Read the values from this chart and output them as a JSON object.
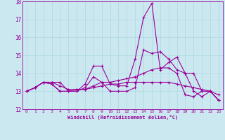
{
  "xlabel": "Windchill (Refroidissement éolien,°C)",
  "ylabel": "",
  "bg_color": "#cbe8f0",
  "line_color": "#990099",
  "xlim": [
    -0.5,
    23.5
  ],
  "ylim": [
    12,
    18
  ],
  "yticks": [
    12,
    13,
    14,
    15,
    16,
    17,
    18
  ],
  "xticks": [
    0,
    1,
    2,
    3,
    4,
    5,
    6,
    7,
    8,
    9,
    10,
    11,
    12,
    13,
    14,
    15,
    16,
    17,
    18,
    19,
    20,
    21,
    22,
    23
  ],
  "series": [
    [
      13.0,
      13.2,
      13.5,
      13.5,
      13.5,
      13.0,
      13.1,
      13.1,
      13.3,
      13.5,
      13.5,
      13.6,
      13.7,
      13.8,
      14.0,
      14.2,
      14.3,
      14.3,
      14.0,
      12.8,
      12.7,
      13.0,
      13.0,
      12.5
    ],
    [
      13.0,
      13.2,
      13.5,
      13.5,
      13.3,
      13.1,
      13.1,
      13.1,
      13.2,
      13.3,
      13.4,
      13.4,
      13.5,
      13.5,
      13.5,
      13.5,
      13.5,
      13.5,
      13.4,
      13.3,
      13.2,
      13.1,
      13.0,
      12.8
    ],
    [
      13.0,
      13.2,
      13.5,
      13.4,
      13.0,
      13.0,
      13.0,
      13.4,
      14.4,
      14.4,
      13.4,
      13.3,
      13.3,
      14.8,
      17.1,
      17.9,
      14.2,
      14.6,
      14.9,
      14.0,
      14.0,
      13.0,
      13.0,
      12.5
    ],
    [
      13.0,
      13.2,
      13.5,
      13.4,
      13.0,
      13.0,
      13.0,
      13.2,
      13.8,
      13.5,
      13.0,
      13.0,
      13.0,
      13.2,
      15.3,
      15.1,
      15.2,
      14.8,
      14.2,
      14.0,
      13.0,
      12.7,
      13.0,
      12.5
    ]
  ]
}
